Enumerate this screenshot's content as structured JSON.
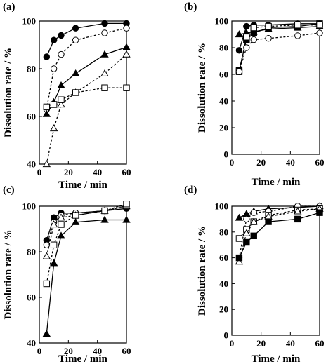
{
  "figure": {
    "panels": [
      {
        "label": "(a)",
        "xlabel": "Time / min",
        "ylabel": "Dissolution rate / %"
      },
      {
        "label": "(b)",
        "xlabel": "Time / min",
        "ylabel": "Dissolution rate / %"
      },
      {
        "label": "(c)",
        "xlabel": "Time / min",
        "ylabel": "Dissolution rate / %"
      },
      {
        "label": "(d)",
        "xlabel": "Time / min",
        "ylabel": "Dissolution rate / %"
      }
    ]
  },
  "chart_data": [
    {
      "type": "line",
      "panel": "(a)",
      "xlabel": "Time / min",
      "ylabel": "Dissolution rate / %",
      "xlim": [
        0,
        60
      ],
      "ylim": [
        40,
        100
      ],
      "xticks": [
        0,
        20,
        40,
        60
      ],
      "yticks": [
        40,
        60,
        80,
        100
      ],
      "grid": false,
      "series": [
        {
          "marker": "filled-circle",
          "line": "solid",
          "x": [
            5,
            10,
            15,
            25,
            45,
            60
          ],
          "y": [
            85,
            92,
            94,
            97,
            99,
            99
          ]
        },
        {
          "marker": "open-circle",
          "line": "dashed",
          "x": [
            5,
            10,
            15,
            25,
            45,
            60
          ],
          "y": [
            63,
            80,
            86,
            92,
            95,
            97
          ]
        },
        {
          "marker": "filled-triangle",
          "line": "solid",
          "x": [
            5,
            10,
            15,
            25,
            45,
            60
          ],
          "y": [
            61,
            66,
            73,
            78,
            86,
            89
          ]
        },
        {
          "marker": "open-triangle",
          "line": "dashed",
          "x": [
            5,
            10,
            15,
            25,
            45,
            60
          ],
          "y": [
            40,
            55,
            65,
            70,
            78,
            86
          ]
        },
        {
          "marker": "open-square",
          "line": "dashed",
          "x": [
            5,
            10,
            15,
            25,
            45,
            60
          ],
          "y": [
            64,
            65,
            67,
            70,
            72,
            72
          ]
        }
      ]
    },
    {
      "type": "line",
      "panel": "(b)",
      "xlabel": "Time / min",
      "ylabel": "Dissolution rate / %",
      "xlim": [
        0,
        60
      ],
      "ylim": [
        0,
        100
      ],
      "xticks": [
        0,
        20,
        40,
        60
      ],
      "yticks": [
        0,
        20,
        40,
        60,
        80,
        100
      ],
      "grid": false,
      "series": [
        {
          "marker": "filled-triangle",
          "line": "solid",
          "x": [
            5,
            10,
            15,
            25,
            45,
            60
          ],
          "y": [
            90,
            91,
            92,
            94,
            95,
            96
          ]
        },
        {
          "marker": "filled-circle",
          "line": "solid",
          "x": [
            5,
            10,
            15,
            25,
            45,
            60
          ],
          "y": [
            78,
            96,
            97,
            97,
            98,
            98
          ]
        },
        {
          "marker": "filled-square",
          "line": "solid",
          "x": [
            5,
            10,
            15,
            25,
            45,
            60
          ],
          "y": [
            63,
            86,
            91,
            95,
            96,
            98
          ]
        },
        {
          "marker": "open-square",
          "line": "dashed",
          "x": [
            5,
            10,
            15,
            25,
            45,
            60
          ],
          "y": [
            62,
            88,
            95,
            96,
            97,
            97
          ]
        },
        {
          "marker": "open-circle",
          "line": "dashed",
          "x": [
            5,
            10,
            15,
            25,
            45,
            60
          ],
          "y": [
            62,
            80,
            86,
            87,
            89,
            91
          ]
        }
      ]
    },
    {
      "type": "line",
      "panel": "(c)",
      "xlabel": "Time / min",
      "ylabel": "Dissolution rate / %",
      "xlim": [
        0,
        60
      ],
      "ylim": [
        40,
        100
      ],
      "xticks": [
        0,
        20,
        40,
        60
      ],
      "yticks": [
        40,
        60,
        80,
        100
      ],
      "grid": false,
      "series": [
        {
          "marker": "filled-circle",
          "line": "solid",
          "x": [
            5,
            10,
            15,
            25,
            45,
            60
          ],
          "y": [
            85,
            95,
            97,
            97,
            98,
            99
          ]
        },
        {
          "marker": "open-circle",
          "line": "dashed",
          "x": [
            5,
            10,
            15,
            25,
            45,
            60
          ],
          "y": [
            83,
            93,
            96,
            97,
            98,
            100
          ]
        },
        {
          "marker": "open-triangle",
          "line": "dashed",
          "x": [
            5,
            10,
            15,
            25,
            45,
            60
          ],
          "y": [
            78,
            92,
            95,
            96,
            98,
            100
          ]
        },
        {
          "marker": "open-square",
          "line": "dashed",
          "x": [
            5,
            10,
            15,
            25,
            45,
            60
          ],
          "y": [
            66,
            83,
            92,
            96,
            98,
            101
          ]
        },
        {
          "marker": "filled-triangle",
          "line": "solid",
          "x": [
            5,
            10,
            15,
            25,
            45,
            60
          ],
          "y": [
            44,
            75,
            87,
            93,
            94,
            94
          ]
        }
      ]
    },
    {
      "type": "line",
      "panel": "(d)",
      "xlabel": "Time / min",
      "ylabel": "Dissolution rate / %",
      "xlim": [
        0,
        60
      ],
      "ylim": [
        0,
        100
      ],
      "xticks": [
        0,
        20,
        40,
        60
      ],
      "yticks": [
        0,
        20,
        40,
        60,
        80,
        100
      ],
      "grid": false,
      "series": [
        {
          "marker": "filled-triangle",
          "line": "solid",
          "x": [
            5,
            10,
            15,
            25,
            45,
            60
          ],
          "y": [
            91,
            94,
            96,
            98,
            99,
            100
          ]
        },
        {
          "marker": "open-circle",
          "line": "dashed",
          "x": [
            5,
            10,
            15,
            25,
            45,
            60
          ],
          "y": [
            60,
            90,
            95,
            96,
            100,
            100
          ]
        },
        {
          "marker": "open-square",
          "line": "dashed",
          "x": [
            5,
            10,
            15,
            25,
            45,
            60
          ],
          "y": [
            75,
            82,
            88,
            93,
            97,
            98
          ]
        },
        {
          "marker": "open-triangle",
          "line": "dashed",
          "x": [
            5,
            10,
            15,
            25,
            45,
            60
          ],
          "y": [
            57,
            79,
            88,
            92,
            96,
            98
          ]
        },
        {
          "marker": "filled-square",
          "line": "solid",
          "x": [
            5,
            10,
            15,
            25,
            45,
            60
          ],
          "y": [
            60,
            72,
            77,
            88,
            90,
            95
          ]
        }
      ]
    }
  ]
}
